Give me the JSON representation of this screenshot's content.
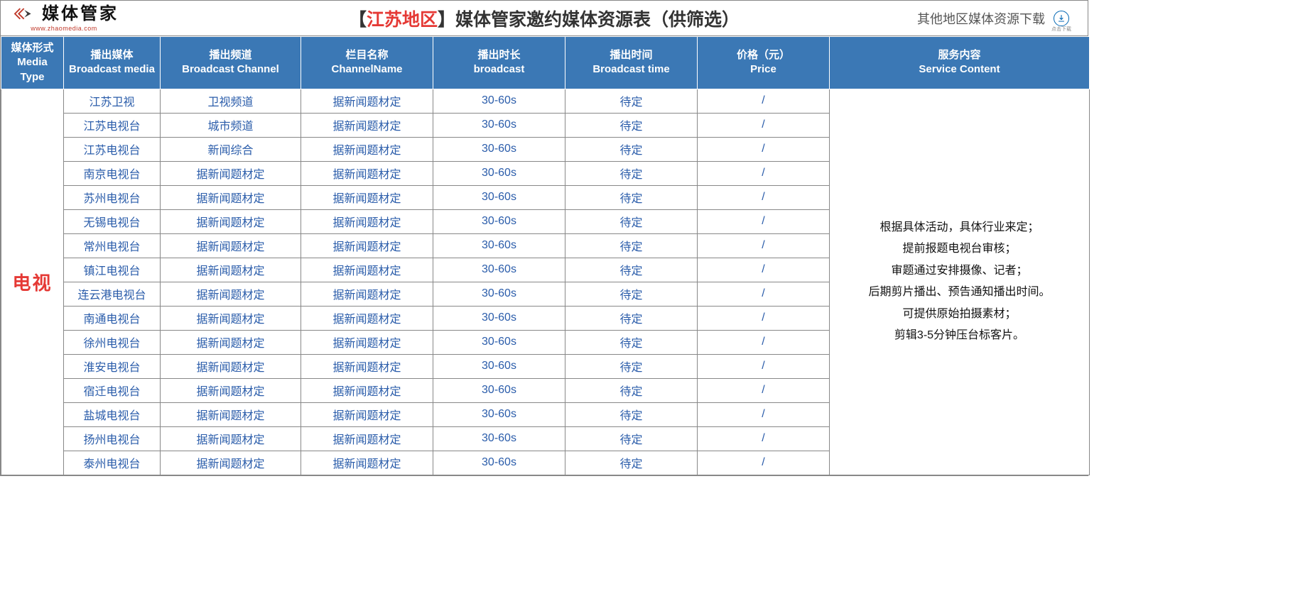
{
  "colors": {
    "header_bg": "#3b78b5",
    "header_fg": "#ffffff",
    "cell_fg": "#2a5caa",
    "rowhead_fg": "#e53935",
    "title_region_fg": "#e53935",
    "border": "#888888",
    "logo_red": "#c03a2b",
    "logo_dark": "#3b3b3b"
  },
  "logo": {
    "text": "媒体管家",
    "sub": "www.zhaomedia.com"
  },
  "title": {
    "prefix": "【",
    "region": "江苏地区",
    "suffix": "】",
    "rest": "媒体管家邀约媒体资源表（供筛选）"
  },
  "download": {
    "label": "其他地区媒体资源下载",
    "icon_sub": "点击下载"
  },
  "columns": [
    {
      "cn": "媒体形式",
      "en": "Media Type"
    },
    {
      "cn": "播出媒体",
      "en": "Broadcast media"
    },
    {
      "cn": "播出频道",
      "en": "Broadcast Channel"
    },
    {
      "cn": "栏目名称",
      "en": "ChannelName"
    },
    {
      "cn": "播出时长",
      "en": "broadcast"
    },
    {
      "cn": "播出时间",
      "en": "Broadcast time"
    },
    {
      "cn": "价格（元）",
      "en": "Price"
    },
    {
      "cn": "服务内容",
      "en": "Service Content"
    }
  ],
  "media_type_label": "电视",
  "service_content": "根据具体活动，具体行业来定；\n提前报题电视台审核；\n审题通过安排摄像、记者；\n后期剪片播出、预告通知播出时间。\n可提供原始拍摄素材；\n剪辑3-5分钟压台标客片。",
  "rows": [
    {
      "media": "江苏卫视",
      "channel": "卫视频道",
      "column": "据新闻题材定",
      "duration": "30-60s",
      "time": "待定",
      "price": "/"
    },
    {
      "media": "江苏电视台",
      "channel": "城市频道",
      "column": "据新闻题材定",
      "duration": "30-60s",
      "time": "待定",
      "price": "/"
    },
    {
      "media": "江苏电视台",
      "channel": "新闻综合",
      "column": "据新闻题材定",
      "duration": "30-60s",
      "time": "待定",
      "price": "/"
    },
    {
      "media": "南京电视台",
      "channel": "据新闻题材定",
      "column": "据新闻题材定",
      "duration": "30-60s",
      "time": "待定",
      "price": "/"
    },
    {
      "media": "苏州电视台",
      "channel": "据新闻题材定",
      "column": "据新闻题材定",
      "duration": "30-60s",
      "time": "待定",
      "price": "/"
    },
    {
      "media": "无锡电视台",
      "channel": "据新闻题材定",
      "column": "据新闻题材定",
      "duration": "30-60s",
      "time": "待定",
      "price": "/"
    },
    {
      "media": "常州电视台",
      "channel": "据新闻题材定",
      "column": "据新闻题材定",
      "duration": "30-60s",
      "time": "待定",
      "price": "/"
    },
    {
      "media": "镇江电视台",
      "channel": "据新闻题材定",
      "column": "据新闻题材定",
      "duration": "30-60s",
      "time": "待定",
      "price": "/"
    },
    {
      "media": "连云港电视台",
      "channel": "据新闻题材定",
      "column": "据新闻题材定",
      "duration": "30-60s",
      "time": "待定",
      "price": "/"
    },
    {
      "media": "南通电视台",
      "channel": "据新闻题材定",
      "column": "据新闻题材定",
      "duration": "30-60s",
      "time": "待定",
      "price": "/"
    },
    {
      "media": "徐州电视台",
      "channel": "据新闻题材定",
      "column": "据新闻题材定",
      "duration": "30-60s",
      "time": "待定",
      "price": "/"
    },
    {
      "media": "淮安电视台",
      "channel": "据新闻题材定",
      "column": "据新闻题材定",
      "duration": "30-60s",
      "time": "待定",
      "price": "/"
    },
    {
      "media": "宿迁电视台",
      "channel": "据新闻题材定",
      "column": "据新闻题材定",
      "duration": "30-60s",
      "time": "待定",
      "price": "/"
    },
    {
      "media": "盐城电视台",
      "channel": "据新闻题材定",
      "column": "据新闻题材定",
      "duration": "30-60s",
      "time": "待定",
      "price": "/"
    },
    {
      "media": "扬州电视台",
      "channel": "据新闻题材定",
      "column": "据新闻题材定",
      "duration": "30-60s",
      "time": "待定",
      "price": "/"
    },
    {
      "media": "泰州电视台",
      "channel": "据新闻题材定",
      "column": "据新闻题材定",
      "duration": "30-60s",
      "time": "待定",
      "price": "/"
    }
  ]
}
